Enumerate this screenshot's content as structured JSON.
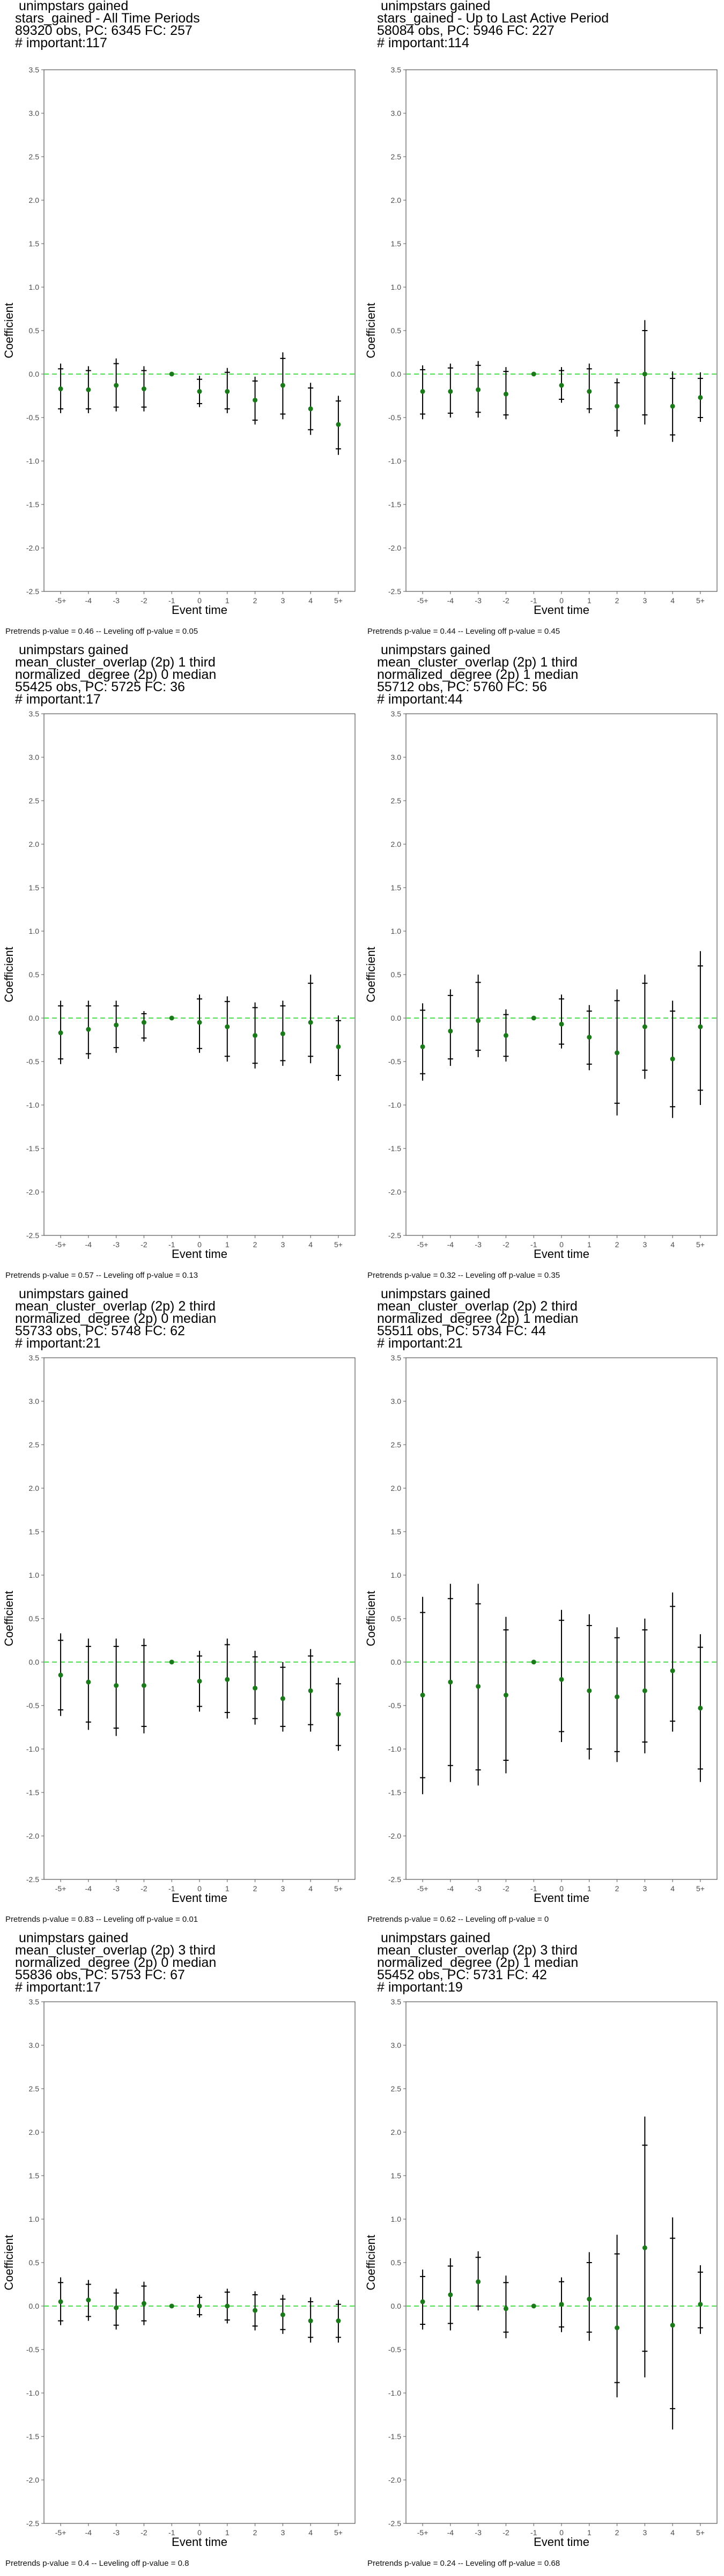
{
  "colors": {
    "point": "#1a7a1a",
    "zero_line": "#4cdc4c",
    "whisker": "#000000",
    "frame": "#555555",
    "tick_text": "#4d4d4d"
  },
  "chart_data": [
    {
      "type": "scatter",
      "title_lines": [
        " unimpstars gained",
        "stars_gained - All Time Periods",
        "89320 obs, PC: 6345 FC: 257",
        "# important:117"
      ],
      "xlabel": "Event time",
      "ylabel": "Coefficient",
      "categories": [
        "-5+",
        "-4",
        "-3",
        "-2",
        "-1",
        "0",
        "1",
        "2",
        "3",
        "4",
        "5+"
      ],
      "ylim": [
        -2.5,
        3.5
      ],
      "yticks": [
        -2.5,
        -2.0,
        -1.5,
        -1.0,
        -0.5,
        0.0,
        0.5,
        1.0,
        1.5,
        2.0,
        2.5,
        3.0,
        3.5
      ],
      "estimates": [
        -0.17,
        -0.18,
        -0.13,
        -0.17,
        0.0,
        -0.2,
        -0.2,
        -0.3,
        -0.13,
        -0.4,
        -0.58
      ],
      "ci95": [
        [
          -0.45,
          0.12
        ],
        [
          -0.45,
          0.09
        ],
        [
          -0.43,
          0.18
        ],
        [
          -0.43,
          0.09
        ],
        [
          0.0,
          0.0
        ],
        [
          -0.38,
          -0.02
        ],
        [
          -0.45,
          0.07
        ],
        [
          -0.58,
          -0.03
        ],
        [
          -0.52,
          0.25
        ],
        [
          -0.7,
          -0.1
        ],
        [
          -0.93,
          -0.25
        ]
      ],
      "ci90": [
        [
          -0.4,
          0.06
        ],
        [
          -0.4,
          0.04
        ],
        [
          -0.38,
          0.12
        ],
        [
          -0.38,
          0.04
        ],
        [
          0.0,
          0.0
        ],
        [
          -0.34,
          -0.06
        ],
        [
          -0.4,
          0.02
        ],
        [
          -0.53,
          -0.08
        ],
        [
          -0.46,
          0.18
        ],
        [
          -0.64,
          -0.16
        ],
        [
          -0.86,
          -0.31
        ]
      ],
      "footnote": "Pretrends p-value = 0.46 -- Leveling off p-value = 0.05"
    },
    {
      "type": "scatter",
      "title_lines": [
        " unimpstars gained",
        "stars_gained - Up to Last Active Period",
        "58084 obs, PC: 5946 FC: 227",
        "# important:114"
      ],
      "xlabel": "Event time",
      "ylabel": "Coefficient",
      "categories": [
        "-5+",
        "-4",
        "-3",
        "-2",
        "-1",
        "0",
        "1",
        "2",
        "3",
        "4",
        "5+"
      ],
      "ylim": [
        -2.5,
        3.5
      ],
      "yticks": [
        -2.5,
        -2.0,
        -1.5,
        -1.0,
        -0.5,
        0.0,
        0.5,
        1.0,
        1.5,
        2.0,
        2.5,
        3.0,
        3.5
      ],
      "estimates": [
        -0.2,
        -0.2,
        -0.18,
        -0.23,
        0.0,
        -0.13,
        -0.2,
        -0.37,
        0.0,
        -0.37,
        -0.27
      ],
      "ci95": [
        [
          -0.52,
          0.1
        ],
        [
          -0.5,
          0.12
        ],
        [
          -0.5,
          0.15
        ],
        [
          -0.52,
          0.08
        ],
        [
          0.0,
          0.0
        ],
        [
          -0.33,
          0.08
        ],
        [
          -0.45,
          0.12
        ],
        [
          -0.72,
          -0.05
        ],
        [
          -0.58,
          0.62
        ],
        [
          -0.78,
          0.03
        ],
        [
          -0.55,
          0.02
        ]
      ],
      "ci90": [
        [
          -0.46,
          0.05
        ],
        [
          -0.45,
          0.07
        ],
        [
          -0.44,
          0.1
        ],
        [
          -0.47,
          0.03
        ],
        [
          0.0,
          0.0
        ],
        [
          -0.29,
          0.04
        ],
        [
          -0.4,
          0.06
        ],
        [
          -0.65,
          -0.1
        ],
        [
          -0.47,
          0.5
        ],
        [
          -0.7,
          -0.05
        ],
        [
          -0.5,
          -0.05
        ]
      ],
      "footnote": "Pretrends p-value = 0.44 -- Leveling off p-value = 0.45"
    },
    {
      "type": "scatter",
      "title_lines": [
        " unimpstars gained",
        "mean_cluster_overlap (2p) 1 third",
        "normalized_degree (2p) 0 median",
        "55425 obs, PC: 5725 FC: 36",
        "# important:17"
      ],
      "xlabel": "Event time",
      "ylabel": "Coefficient",
      "categories": [
        "-5+",
        "-4",
        "-3",
        "-2",
        "-1",
        "0",
        "1",
        "2",
        "3",
        "4",
        "5+"
      ],
      "ylim": [
        -2.5,
        3.5
      ],
      "yticks": [
        -2.5,
        -2.0,
        -1.5,
        -1.0,
        -0.5,
        0.0,
        0.5,
        1.0,
        1.5,
        2.0,
        2.5,
        3.0,
        3.5
      ],
      "estimates": [
        -0.17,
        -0.13,
        -0.08,
        -0.05,
        0.0,
        -0.05,
        -0.1,
        -0.2,
        -0.18,
        -0.05,
        -0.33
      ],
      "ci95": [
        [
          -0.53,
          0.2
        ],
        [
          -0.47,
          0.2
        ],
        [
          -0.4,
          0.2
        ],
        [
          -0.27,
          0.08
        ],
        [
          0.0,
          0.0
        ],
        [
          -0.4,
          0.27
        ],
        [
          -0.5,
          0.25
        ],
        [
          -0.58,
          0.18
        ],
        [
          -0.55,
          0.2
        ],
        [
          -0.52,
          0.5
        ],
        [
          -0.72,
          0.03
        ]
      ],
      "ci90": [
        [
          -0.47,
          0.14
        ],
        [
          -0.41,
          0.14
        ],
        [
          -0.34,
          0.14
        ],
        [
          -0.23,
          0.05
        ],
        [
          0.0,
          0.0
        ],
        [
          -0.35,
          0.22
        ],
        [
          -0.44,
          0.19
        ],
        [
          -0.52,
          0.12
        ],
        [
          -0.49,
          0.14
        ],
        [
          -0.44,
          0.4
        ],
        [
          -0.66,
          -0.03
        ]
      ],
      "footnote": "Pretrends p-value = 0.57 -- Leveling off p-value = 0.13"
    },
    {
      "type": "scatter",
      "title_lines": [
        " unimpstars gained",
        "mean_cluster_overlap (2p) 1 third",
        "normalized_degree (2p) 1 median",
        "55712 obs, PC: 5760 FC: 56",
        "# important:44"
      ],
      "xlabel": "Event time",
      "ylabel": "Coefficient",
      "categories": [
        "-5+",
        "-4",
        "-3",
        "-2",
        "-1",
        "0",
        "1",
        "2",
        "3",
        "4",
        "5+"
      ],
      "ylim": [
        -2.5,
        3.5
      ],
      "yticks": [
        -2.5,
        -2.0,
        -1.5,
        -1.0,
        -0.5,
        0.0,
        0.5,
        1.0,
        1.5,
        2.0,
        2.5,
        3.0,
        3.5
      ],
      "estimates": [
        -0.33,
        -0.15,
        -0.03,
        -0.2,
        0.0,
        -0.07,
        -0.22,
        -0.4,
        -0.1,
        -0.47,
        -0.1
      ],
      "ci95": [
        [
          -0.72,
          0.17
        ],
        [
          -0.55,
          0.33
        ],
        [
          -0.45,
          0.5
        ],
        [
          -0.5,
          0.1
        ],
        [
          0.0,
          0.0
        ],
        [
          -0.35,
          0.27
        ],
        [
          -0.6,
          0.15
        ],
        [
          -1.12,
          0.33
        ],
        [
          -0.7,
          0.5
        ],
        [
          -1.15,
          0.2
        ],
        [
          -1.0,
          0.77
        ]
      ],
      "ci90": [
        [
          -0.64,
          0.09
        ],
        [
          -0.47,
          0.26
        ],
        [
          -0.37,
          0.41
        ],
        [
          -0.44,
          0.04
        ],
        [
          0.0,
          0.0
        ],
        [
          -0.3,
          0.22
        ],
        [
          -0.53,
          0.08
        ],
        [
          -0.98,
          0.2
        ],
        [
          -0.6,
          0.4
        ],
        [
          -1.02,
          0.08
        ],
        [
          -0.83,
          0.6
        ]
      ],
      "footnote": "Pretrends p-value = 0.32 -- Leveling off p-value = 0.35"
    },
    {
      "type": "scatter",
      "title_lines": [
        " unimpstars gained",
        "mean_cluster_overlap (2p) 2 third",
        "normalized_degree (2p) 0 median",
        "55733 obs, PC: 5748 FC: 62",
        "# important:21"
      ],
      "xlabel": "Event time",
      "ylabel": "Coefficient",
      "categories": [
        "-5+",
        "-4",
        "-3",
        "-2",
        "-1",
        "0",
        "1",
        "2",
        "3",
        "4",
        "5+"
      ],
      "ylim": [
        -2.5,
        3.5
      ],
      "yticks": [
        -2.5,
        -2.0,
        -1.5,
        -1.0,
        -0.5,
        0.0,
        0.5,
        1.0,
        1.5,
        2.0,
        2.5,
        3.0,
        3.5
      ],
      "estimates": [
        -0.15,
        -0.23,
        -0.27,
        -0.27,
        0.0,
        -0.22,
        -0.2,
        -0.3,
        -0.42,
        -0.33,
        -0.6
      ],
      "ci95": [
        [
          -0.62,
          0.33
        ],
        [
          -0.78,
          0.27
        ],
        [
          -0.85,
          0.27
        ],
        [
          -0.82,
          0.27
        ],
        [
          0.0,
          0.0
        ],
        [
          -0.57,
          0.13
        ],
        [
          -0.65,
          0.27
        ],
        [
          -0.72,
          0.13
        ],
        [
          -0.8,
          0.0
        ],
        [
          -0.8,
          0.15
        ],
        [
          -1.02,
          -0.18
        ]
      ],
      "ci90": [
        [
          -0.55,
          0.25
        ],
        [
          -0.69,
          0.18
        ],
        [
          -0.76,
          0.18
        ],
        [
          -0.74,
          0.19
        ],
        [
          0.0,
          0.0
        ],
        [
          -0.51,
          0.07
        ],
        [
          -0.58,
          0.2
        ],
        [
          -0.65,
          0.06
        ],
        [
          -0.74,
          -0.06
        ],
        [
          -0.72,
          0.07
        ],
        [
          -0.96,
          -0.25
        ]
      ],
      "footnote": "Pretrends p-value = 0.83 -- Leveling off p-value = 0.01"
    },
    {
      "type": "scatter",
      "title_lines": [
        " unimpstars gained",
        "mean_cluster_overlap (2p) 2 third",
        "normalized_degree (2p) 1 median",
        "55511 obs, PC: 5734 FC: 44",
        "# important:21"
      ],
      "xlabel": "Event time",
      "ylabel": "Coefficient",
      "categories": [
        "-5+",
        "-4",
        "-3",
        "-2",
        "-1",
        "0",
        "1",
        "2",
        "3",
        "4",
        "5+"
      ],
      "ylim": [
        -2.5,
        3.5
      ],
      "yticks": [
        -2.5,
        -2.0,
        -1.5,
        -1.0,
        -0.5,
        0.0,
        0.5,
        1.0,
        1.5,
        2.0,
        2.5,
        3.0,
        3.5
      ],
      "estimates": [
        -0.38,
        -0.23,
        -0.28,
        -0.38,
        0.0,
        -0.2,
        -0.33,
        -0.4,
        -0.33,
        -0.1,
        -0.53
      ],
      "ci95": [
        [
          -1.52,
          0.75
        ],
        [
          -1.38,
          0.9
        ],
        [
          -1.42,
          0.9
        ],
        [
          -1.28,
          0.52
        ],
        [
          0.0,
          0.0
        ],
        [
          -0.92,
          0.6
        ],
        [
          -1.12,
          0.55
        ],
        [
          -1.15,
          0.4
        ],
        [
          -1.05,
          0.5
        ],
        [
          -0.8,
          0.8
        ],
        [
          -1.38,
          0.32
        ]
      ],
      "ci90": [
        [
          -1.33,
          0.57
        ],
        [
          -1.19,
          0.73
        ],
        [
          -1.24,
          0.67
        ],
        [
          -1.13,
          0.37
        ],
        [
          0.0,
          0.0
        ],
        [
          -0.8,
          0.48
        ],
        [
          -1.0,
          0.42
        ],
        [
          -1.03,
          0.28
        ],
        [
          -0.92,
          0.37
        ],
        [
          -0.68,
          0.64
        ],
        [
          -1.23,
          0.17
        ]
      ],
      "footnote": "Pretrends p-value = 0.62 -- Leveling off p-value = 0"
    },
    {
      "type": "scatter",
      "title_lines": [
        " unimpstars gained",
        "mean_cluster_overlap (2p) 3 third",
        "normalized_degree (2p) 0 median",
        "55836 obs, PC: 5753 FC: 67",
        "# important:17"
      ],
      "xlabel": "Event time",
      "ylabel": "Coefficient",
      "categories": [
        "-5+",
        "-4",
        "-3",
        "-2",
        "-1",
        "0",
        "1",
        "2",
        "3",
        "4",
        "5+"
      ],
      "ylim": [
        -2.5,
        3.5
      ],
      "yticks": [
        -2.5,
        -2.0,
        -1.5,
        -1.0,
        -0.5,
        0.0,
        0.5,
        1.0,
        1.5,
        2.0,
        2.5,
        3.0,
        3.5
      ],
      "estimates": [
        0.05,
        0.07,
        -0.02,
        0.03,
        0.0,
        0.0,
        0.0,
        -0.05,
        -0.1,
        -0.17,
        -0.17
      ],
      "ci95": [
        [
          -0.22,
          0.33
        ],
        [
          -0.17,
          0.3
        ],
        [
          -0.27,
          0.2
        ],
        [
          -0.22,
          0.28
        ],
        [
          0.0,
          0.0
        ],
        [
          -0.13,
          0.13
        ],
        [
          -0.2,
          0.2
        ],
        [
          -0.28,
          0.17
        ],
        [
          -0.32,
          0.13
        ],
        [
          -0.42,
          0.1
        ],
        [
          -0.42,
          0.07
        ]
      ],
      "ci90": [
        [
          -0.17,
          0.27
        ],
        [
          -0.12,
          0.25
        ],
        [
          -0.22,
          0.15
        ],
        [
          -0.17,
          0.23
        ],
        [
          0.0,
          0.0
        ],
        [
          -0.1,
          0.1
        ],
        [
          -0.16,
          0.16
        ],
        [
          -0.23,
          0.13
        ],
        [
          -0.27,
          0.08
        ],
        [
          -0.36,
          0.05
        ],
        [
          -0.36,
          0.02
        ]
      ],
      "footnote": "Pretrends p-value = 0.4 -- Leveling off p-value = 0.8"
    },
    {
      "type": "scatter",
      "title_lines": [
        " unimpstars gained",
        "mean_cluster_overlap (2p) 3 third",
        "normalized_degree (2p) 1 median",
        "55452 obs, PC: 5731 FC: 42",
        "# important:19"
      ],
      "xlabel": "Event time",
      "ylabel": "Coefficient",
      "categories": [
        "-5+",
        "-4",
        "-3",
        "-2",
        "-1",
        "0",
        "1",
        "2",
        "3",
        "4",
        "5+"
      ],
      "ylim": [
        -2.5,
        3.5
      ],
      "yticks": [
        -2.5,
        -2.0,
        -1.5,
        -1.0,
        -0.5,
        0.0,
        0.5,
        1.0,
        1.5,
        2.0,
        2.5,
        3.0,
        3.5
      ],
      "estimates": [
        0.05,
        0.13,
        0.28,
        -0.03,
        0.0,
        0.02,
        0.08,
        -0.25,
        0.67,
        -0.22,
        0.02
      ],
      "ci95": [
        [
          -0.27,
          0.42
        ],
        [
          -0.28,
          0.55
        ],
        [
          -0.05,
          0.63
        ],
        [
          -0.37,
          0.35
        ],
        [
          0.0,
          0.0
        ],
        [
          -0.3,
          0.33
        ],
        [
          -0.4,
          0.62
        ],
        [
          -1.05,
          0.82
        ],
        [
          -0.82,
          2.18
        ],
        [
          -1.42,
          1.02
        ],
        [
          -0.32,
          0.47
        ]
      ],
      "ci90": [
        [
          -0.21,
          0.34
        ],
        [
          -0.2,
          0.46
        ],
        [
          0.0,
          0.56
        ],
        [
          -0.3,
          0.27
        ],
        [
          0.0,
          0.0
        ],
        [
          -0.24,
          0.28
        ],
        [
          -0.3,
          0.5
        ],
        [
          -0.88,
          0.6
        ],
        [
          -0.52,
          1.85
        ],
        [
          -1.18,
          0.78
        ],
        [
          -0.25,
          0.39
        ]
      ],
      "footnote": "Pretrends p-value = 0.24 -- Leveling off p-value = 0.68"
    }
  ]
}
